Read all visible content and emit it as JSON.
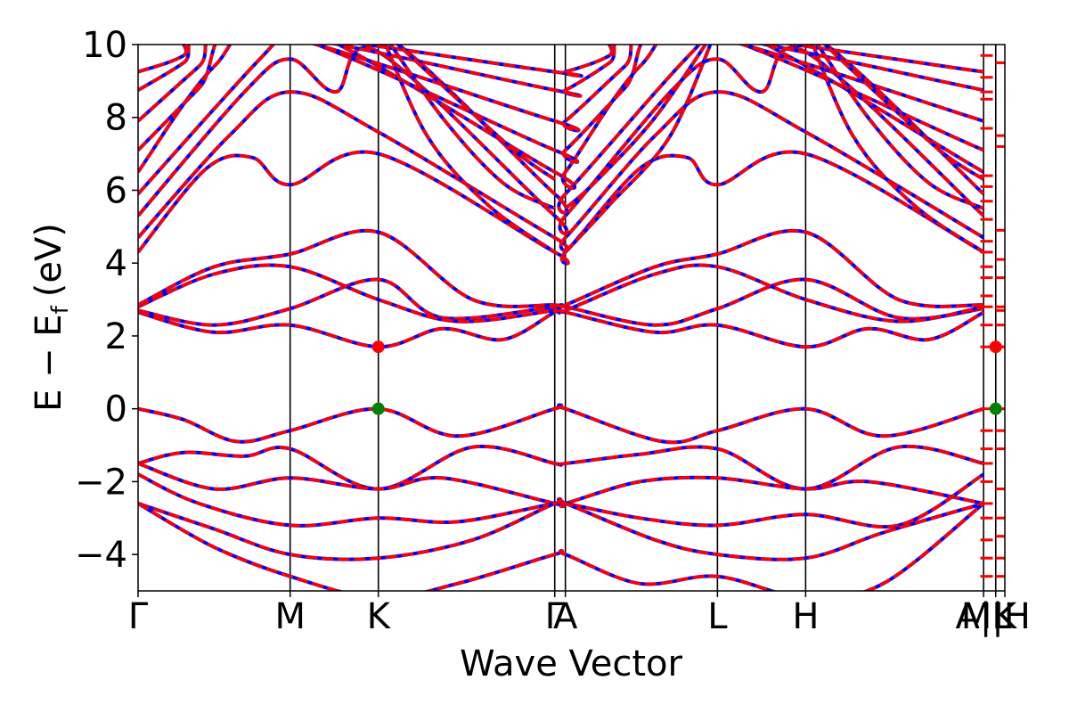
{
  "chart_data": {
    "type": "line",
    "title": "",
    "xlabel": "Wave Vector",
    "ylabel": "E − Eₑ",
    "ylabel_prefix": "E − E",
    "ylabel_subscript": "f",
    "ylabel_unit": "(eV)",
    "ylim": [
      -5,
      10
    ],
    "yticks": [
      -4,
      -2,
      0,
      2,
      4,
      6,
      8,
      10
    ],
    "ytick_labels": [
      "−4",
      "−2",
      "0",
      "2",
      "4",
      "6",
      "8",
      "10"
    ],
    "grid": false,
    "legend": "none",
    "kpath": {
      "range": [
        0,
        5.7
      ],
      "labels": [
        {
          "name": "Γ",
          "x": 0
        },
        {
          "name": "M",
          "x": 1.0
        },
        {
          "name": "K",
          "x": 1.58
        },
        {
          "name": "Γ",
          "x": 2.74
        },
        {
          "name": "A",
          "x": 2.81
        },
        {
          "name": "L",
          "x": 3.81
        },
        {
          "name": "H",
          "x": 4.39
        },
        {
          "name": "A|L",
          "x": 5.56
        },
        {
          "name": "M|H",
          "x": 5.64
        },
        {
          "name": "K",
          "x": 5.7
        }
      ]
    },
    "series": [
      {
        "style": "solid",
        "color": "#0000ff"
      },
      {
        "style": "dashed",
        "color": "#ff0000"
      }
    ],
    "bands": [
      {
        "name": "valence-top",
        "x": [
          0,
          0.3,
          0.65,
          1.0,
          1.58,
          2.1,
          2.74,
          2.81,
          3.45,
          3.81,
          4.39,
          4.9,
          5.56
        ],
        "y": [
          0,
          -0.3,
          -0.9,
          -0.6,
          0,
          -0.75,
          0,
          0,
          -0.9,
          -0.6,
          0,
          -0.75,
          0
        ]
      },
      {
        "name": "v2",
        "x": [
          0,
          0.3,
          0.7,
          1.0,
          1.58,
          2.2,
          2.74,
          2.81,
          3.3,
          3.81,
          4.39,
          5.0,
          5.56
        ],
        "y": [
          -1.5,
          -1.2,
          -1.3,
          -1.1,
          -2.2,
          -1.05,
          -1.5,
          -1.5,
          -1.25,
          -1.1,
          -2.2,
          -1.05,
          -1.5
        ]
      },
      {
        "name": "v3",
        "x": [
          0,
          0.5,
          1.0,
          1.58,
          2.0,
          2.74,
          2.81,
          3.3,
          3.81,
          4.39,
          4.8,
          5.56
        ],
        "y": [
          -1.5,
          -2.2,
          -1.9,
          -2.2,
          -1.9,
          -2.6,
          -2.6,
          -2.0,
          -1.9,
          -2.2,
          -2.0,
          -2.6
        ]
      },
      {
        "name": "v4",
        "x": [
          0,
          0.4,
          1.0,
          1.58,
          2.1,
          2.74,
          2.81,
          3.3,
          3.81,
          4.39,
          5.0,
          5.56
        ],
        "y": [
          -1.8,
          -2.6,
          -3.2,
          -3.0,
          -3.1,
          -2.6,
          -2.6,
          -3.0,
          -3.2,
          -2.9,
          -3.2,
          -1.8
        ]
      },
      {
        "name": "v5",
        "x": [
          0,
          0.5,
          1.0,
          1.58,
          2.2,
          2.74,
          2.81,
          3.4,
          3.81,
          4.39,
          4.9,
          5.56
        ],
        "y": [
          -2.6,
          -3.3,
          -4.0,
          -4.1,
          -3.6,
          -2.6,
          -2.6,
          -3.6,
          -4.0,
          -4.1,
          -3.4,
          -2.6
        ]
      },
      {
        "name": "v6",
        "x": [
          0,
          0.5,
          1.0,
          1.58,
          2.1,
          2.74,
          2.81,
          3.3,
          3.81,
          4.39,
          4.9,
          5.56
        ],
        "y": [
          -2.6,
          -3.8,
          -4.6,
          -5.2,
          -4.8,
          -4.0,
          -4.0,
          -4.8,
          -4.6,
          -5.2,
          -4.8,
          -2.6
        ]
      },
      {
        "name": "c1",
        "x": [
          0,
          0.5,
          1.0,
          1.58,
          2.0,
          2.4,
          2.74,
          2.81,
          3.4,
          3.81,
          4.39,
          4.8,
          5.2,
          5.56
        ],
        "y": [
          2.65,
          2.1,
          2.3,
          1.7,
          2.2,
          1.9,
          2.65,
          2.65,
          2.1,
          2.3,
          1.7,
          2.2,
          1.9,
          2.65
        ]
      },
      {
        "name": "c2",
        "x": [
          0,
          0.5,
          1.0,
          1.58,
          2.0,
          2.74,
          2.81,
          3.4,
          3.81,
          4.39,
          5.0,
          5.56
        ],
        "y": [
          2.7,
          2.3,
          2.75,
          3.55,
          2.5,
          2.8,
          2.8,
          2.3,
          2.75,
          3.55,
          2.5,
          2.75
        ]
      },
      {
        "name": "c3",
        "x": [
          0,
          0.5,
          1.0,
          1.58,
          2.1,
          2.74,
          2.81,
          3.4,
          3.81,
          4.39,
          5.0,
          5.56
        ],
        "y": [
          2.8,
          3.7,
          3.9,
          3.0,
          2.4,
          2.7,
          2.7,
          3.7,
          3.9,
          3.0,
          2.4,
          2.8
        ]
      },
      {
        "name": "c4",
        "x": [
          0,
          0.5,
          1.0,
          1.58,
          2.2,
          2.74,
          2.81,
          3.4,
          3.81,
          4.39,
          5.0,
          5.56
        ],
        "y": [
          2.85,
          3.9,
          4.25,
          4.85,
          3.0,
          2.85,
          2.85,
          3.9,
          4.25,
          4.85,
          3.0,
          2.85
        ]
      },
      {
        "name": "c5",
        "x": [
          0,
          0.45,
          0.75,
          1.0,
          1.58,
          2.74,
          2.81,
          3.3,
          3.61,
          3.81,
          4.39,
          5.56
        ],
        "y": [
          4.3,
          6.6,
          6.9,
          6.15,
          7.0,
          4.3,
          4.3,
          6.6,
          6.9,
          6.15,
          7.0,
          4.3
        ]
      },
      {
        "name": "c6",
        "x": [
          0,
          0.6,
          1.0,
          1.58,
          2.74,
          2.81,
          3.4,
          3.81,
          4.39,
          5.56
        ],
        "y": [
          4.7,
          7.5,
          8.7,
          7.6,
          4.7,
          4.7,
          7.5,
          8.7,
          7.6,
          4.7
        ]
      },
      {
        "name": "c7",
        "x": [
          0,
          0.7,
          1.0,
          1.3,
          1.58,
          2.74,
          2.81,
          3.5,
          3.81,
          4.1,
          4.39,
          5.56
        ],
        "y": [
          5.3,
          8.7,
          9.6,
          8.7,
          9.8,
          5.3,
          5.3,
          8.7,
          9.6,
          8.7,
          9.8,
          5.3
        ]
      },
      {
        "name": "c8",
        "x": [
          0,
          0.8,
          1.0,
          1.58,
          2.74,
          2.81,
          3.6,
          3.81,
          4.39,
          5.56
        ],
        "y": [
          5.9,
          9.6,
          10.2,
          10.4,
          5.9,
          5.9,
          9.6,
          10.2,
          10.4,
          5.9
        ]
      },
      {
        "name": "c9",
        "x": [
          0,
          0.5,
          1.0,
          2.74,
          2.81,
          3.3,
          3.81,
          5.56
        ],
        "y": [
          6.5,
          9.4,
          10.6,
          6.5,
          6.5,
          9.4,
          10.6,
          6.5
        ]
      },
      {
        "name": "c10",
        "x": [
          0,
          0.4,
          0.8,
          2.74,
          2.81,
          3.2,
          3.6,
          5.56
        ],
        "y": [
          7.1,
          8.8,
          10.5,
          7.1,
          7.1,
          8.8,
          10.5,
          7.1
        ]
      },
      {
        "name": "c11",
        "x": [
          0,
          0.4,
          0.7,
          2.74,
          2.81,
          3.2,
          3.5,
          5.56
        ],
        "y": [
          7.9,
          9.4,
          10.5,
          7.9,
          7.9,
          9.4,
          10.5,
          7.9
        ]
      },
      {
        "name": "c12",
        "x": [
          0,
          0.3,
          0.6,
          2.74,
          2.81,
          3.1,
          3.4,
          5.56
        ],
        "y": [
          8.75,
          9.5,
          10.5,
          8.75,
          8.75,
          9.5,
          10.5,
          8.75
        ]
      },
      {
        "name": "c13",
        "x": [
          0,
          0.3,
          0.5,
          2.74,
          2.81,
          3.1,
          3.3,
          5.56
        ],
        "y": [
          9.25,
          9.7,
          10.5,
          9.25,
          9.25,
          9.7,
          10.5,
          9.25
        ]
      },
      {
        "name": "c14",
        "x": [
          1.58,
          1.9,
          2.3,
          2.74
        ],
        "y": [
          10.5,
          7.5,
          5.6,
          4.3
        ]
      },
      {
        "name": "c15",
        "x": [
          1.58,
          2.0,
          2.4,
          2.74
        ],
        "y": [
          10.5,
          8.0,
          6.2,
          5.5
        ]
      },
      {
        "name": "c16",
        "x": [
          1.58,
          2.1,
          2.5,
          2.74
        ],
        "y": [
          10.5,
          8.5,
          7.0,
          6.3
        ]
      },
      {
        "name": "c17",
        "x": [
          2.81,
          3.1,
          3.5,
          3.81
        ],
        "y": [
          4.3,
          5.6,
          7.5,
          10.5
        ]
      },
      {
        "name": "c18",
        "x": [
          2.81,
          3.0,
          3.4,
          3.81
        ],
        "y": [
          5.5,
          6.2,
          8.0,
          10.5
        ]
      },
      {
        "name": "c19",
        "x": [
          4.39,
          4.7,
          5.1,
          5.56
        ],
        "y": [
          10.5,
          7.5,
          5.6,
          4.3
        ]
      },
      {
        "name": "c20",
        "x": [
          4.39,
          4.8,
          5.2,
          5.56
        ],
        "y": [
          10.5,
          8.0,
          6.2,
          5.5
        ]
      },
      {
        "name": "c21",
        "x": [
          4.39,
          4.9,
          5.3,
          5.56
        ],
        "y": [
          10.5,
          8.5,
          7.0,
          6.3
        ]
      }
    ],
    "tail_marks": [
      {
        "x": 5.58,
        "y": [
          9.7,
          9.1,
          8.7,
          8.5,
          7.7,
          6.4,
          6.1,
          5.7,
          5.2,
          4.6,
          4.3,
          3.9,
          3.6,
          3.1,
          2.8,
          2.3,
          1.7,
          0,
          -0.6,
          -1.1,
          -1.5,
          -2.0,
          -2.6,
          -3.0,
          -3.6,
          -4.1,
          -4.6
        ]
      },
      {
        "x": 5.68,
        "y": [
          9.5,
          7.5,
          7.2,
          4.9,
          4.1,
          3.6,
          2.8,
          2.7,
          2.3,
          1.7,
          0,
          -0.6,
          -1.1,
          -2.2,
          -3.0,
          -3.5,
          -4.1,
          -4.6
        ]
      }
    ],
    "markers": [
      {
        "name": "CBM",
        "x": 1.58,
        "y": 1.7,
        "color": "#ff0000"
      },
      {
        "name": "VBM",
        "x": 1.58,
        "y": 0.0,
        "color": "#008000"
      },
      {
        "name": "CBM",
        "x": 5.64,
        "y": 1.7,
        "color": "#ff0000"
      },
      {
        "name": "VBM",
        "x": 5.64,
        "y": 0.0,
        "color": "#008000"
      }
    ]
  }
}
